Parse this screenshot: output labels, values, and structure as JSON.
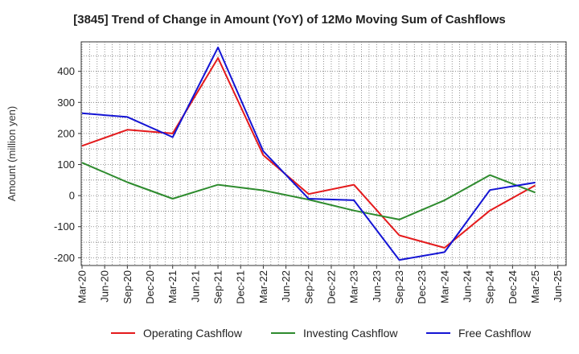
{
  "chart_data": {
    "type": "line",
    "title": "[3845]  Trend of Change in Amount (YoY) of 12Mo Moving Sum of Cashflows",
    "xlabel": "",
    "ylabel": "Amount (million yen)",
    "x_ticks": [
      "Mar-20",
      "Jun-20",
      "Sep-20",
      "Dec-20",
      "Mar-21",
      "Jun-21",
      "Sep-21",
      "Dec-21",
      "Mar-22",
      "Jun-22",
      "Sep-22",
      "Dec-22",
      "Mar-23",
      "Jun-23",
      "Sep-23",
      "Dec-23",
      "Mar-24",
      "Jun-24",
      "Sep-24",
      "Dec-24",
      "Mar-25",
      "Jun-25"
    ],
    "y_ticks": [
      -200,
      -100,
      0,
      100,
      200,
      300,
      400
    ],
    "ylim": [
      -225,
      495
    ],
    "grid": true,
    "legend_position": "bottom",
    "series": [
      {
        "name": "Operating Cashflow",
        "color": "#e41a1c",
        "x": [
          "Mar-20",
          "Sep-20",
          "Mar-21",
          "Sep-21",
          "Mar-22",
          "Sep-22",
          "Mar-23",
          "Sep-23",
          "Mar-24",
          "Sep-24",
          "Mar-25"
        ],
        "values": [
          160,
          212,
          200,
          443,
          130,
          5,
          35,
          -128,
          -168,
          -48,
          33
        ]
      },
      {
        "name": "Investing Cashflow",
        "color": "#2e8b2e",
        "x": [
          "Mar-20",
          "Sep-20",
          "Mar-21",
          "Sep-21",
          "Mar-22",
          "Sep-22",
          "Mar-23",
          "Sep-23",
          "Mar-24",
          "Sep-24",
          "Mar-25"
        ],
        "values": [
          106,
          43,
          -10,
          35,
          17,
          -13,
          -48,
          -77,
          -15,
          66,
          10
        ]
      },
      {
        "name": "Free Cashflow",
        "color": "#1414d4",
        "x": [
          "Mar-20",
          "Sep-20",
          "Mar-21",
          "Sep-21",
          "Mar-22",
          "Sep-22",
          "Mar-23",
          "Sep-23",
          "Mar-24",
          "Sep-24",
          "Mar-25"
        ],
        "values": [
          265,
          253,
          188,
          477,
          143,
          -10,
          -15,
          -207,
          -182,
          18,
          42
        ]
      }
    ]
  }
}
